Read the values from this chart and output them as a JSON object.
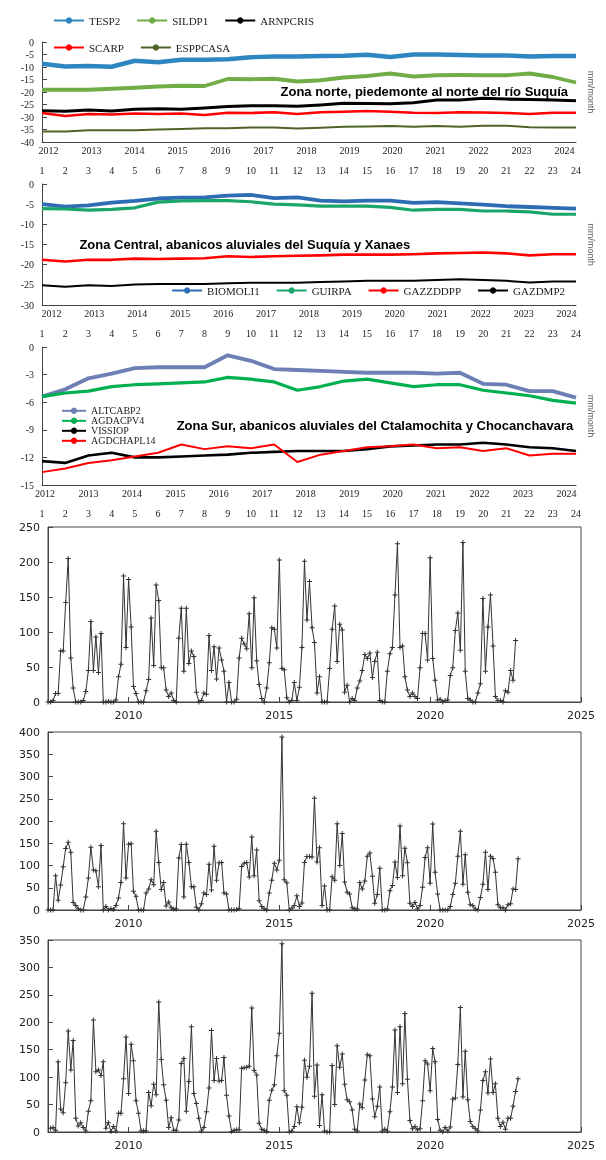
{
  "chart_data": [
    {
      "type": "line",
      "ylabel": "mm/month",
      "annotations": [
        "Zona norte, piedemonte al norte del río Suquía"
      ],
      "x": [
        1,
        2,
        3,
        4,
        5,
        6,
        7,
        8,
        9,
        10,
        11,
        12,
        13,
        14,
        15,
        16,
        17,
        18,
        19,
        20,
        21,
        22,
        23,
        24
      ],
      "xlim": [
        1,
        24
      ],
      "xticks": [
        1,
        2,
        3,
        4,
        5,
        6,
        7,
        8,
        9,
        10,
        11,
        12,
        13,
        14,
        15,
        16,
        17,
        18,
        19,
        20,
        21,
        22,
        23,
        24
      ],
      "x2lim": [
        2011.85,
        2024.27
      ],
      "x2ticks": [
        2012,
        2013,
        2014,
        2015,
        2016,
        2017,
        2018,
        2019,
        2020,
        2021,
        2022,
        2023,
        2024
      ],
      "ylim": [
        -40,
        0
      ],
      "yticks": [
        -40,
        -35,
        -30,
        -25,
        -20,
        -15,
        -10,
        -5,
        0
      ],
      "legend": "top left",
      "series": [
        {
          "name": "TESP2",
          "color": "#2e86c1",
          "values": [
            -8.7,
            -9.8,
            -9.6,
            -9.9,
            -7.5,
            -8.1,
            -7.1,
            -7.1,
            -6.9,
            -6.1,
            -5.8,
            -5.8,
            -5.6,
            -5.5,
            -5.1,
            -6.0,
            -5.0,
            -5.0,
            -5.2,
            -5.4,
            -5.4,
            -5.8,
            -5.6,
            -5.6
          ]
        },
        {
          "name": "SILDP1",
          "color": "#70ad47",
          "values": [
            -19.1,
            -19.1,
            -19.1,
            -18.7,
            -18.3,
            -17.8,
            -17.5,
            -17.6,
            -14.8,
            -14.9,
            -14.7,
            -15.8,
            -15.3,
            -14.2,
            -13.6,
            -12.6,
            -13.8,
            -13.3,
            -13.2,
            -13.3,
            -13.3,
            -12.6,
            -14.0,
            -16.2
          ]
        },
        {
          "name": "ARNPCRIS",
          "color": "#000000",
          "values": [
            -27.5,
            -27.7,
            -27.2,
            -27.6,
            -26.9,
            -26.7,
            -26.9,
            -26.4,
            -25.8,
            -25.5,
            -25.5,
            -25.7,
            -25.2,
            -24.5,
            -24.6,
            -24.7,
            -24.3,
            -23.2,
            -23.2,
            -22.5,
            -22.8,
            -23.0,
            -23.2,
            -23.5
          ]
        },
        {
          "name": "SCARP",
          "color": "#ff0000",
          "values": [
            -28.4,
            -29.6,
            -28.8,
            -29.0,
            -28.6,
            -28.8,
            -28.6,
            -29.2,
            -28.3,
            -28.4,
            -28.1,
            -28.8,
            -28.1,
            -27.9,
            -27.6,
            -27.9,
            -28.3,
            -28.4,
            -28.1,
            -28.2,
            -28.4,
            -28.8,
            -28.3,
            -28.3
          ]
        },
        {
          "name": "ESPPCASA",
          "color": "#4f6228",
          "values": [
            -35.8,
            -35.8,
            -35.3,
            -35.3,
            -35.3,
            -35.0,
            -34.8,
            -34.5,
            -34.5,
            -34.2,
            -34.2,
            -34.6,
            -34.3,
            -33.9,
            -33.8,
            -33.6,
            -33.9,
            -33.6,
            -33.9,
            -33.5,
            -33.5,
            -34.1,
            -34.2,
            -34.2
          ]
        }
      ]
    },
    {
      "type": "line",
      "ylabel": "mm/month",
      "annotations": [
        "Zona Central, abanicos aluviales del Suquía y Xanaes"
      ],
      "x": [
        1,
        2,
        3,
        4,
        5,
        6,
        7,
        8,
        9,
        10,
        11,
        12,
        13,
        14,
        15,
        16,
        17,
        18,
        19,
        20,
        21,
        22,
        23,
        24
      ],
      "xlim": [
        1,
        24
      ],
      "xticks": [
        1,
        2,
        3,
        4,
        5,
        6,
        7,
        8,
        9,
        10,
        11,
        12,
        13,
        14,
        15,
        16,
        17,
        18,
        19,
        20,
        21,
        22,
        23,
        24
      ],
      "x2lim": [
        2011.78,
        2024.22
      ],
      "x2ticks": [
        2012,
        2013,
        2014,
        2015,
        2016,
        2017,
        2018,
        2019,
        2020,
        2021,
        2022,
        2023,
        2024
      ],
      "ylim": [
        -30,
        0
      ],
      "yticks": [
        -30,
        -25,
        -20,
        -15,
        -10,
        -5,
        0
      ],
      "legend": "bottom right",
      "series": [
        {
          "name": "BIOMOLI1",
          "color": "#2e6db4",
          "values": [
            -5.0,
            -5.6,
            -5.3,
            -4.6,
            -4.2,
            -3.6,
            -3.4,
            -3.3,
            -2.9,
            -2.7,
            -3.5,
            -3.3,
            -4.1,
            -4.3,
            -4.1,
            -4.1,
            -4.7,
            -4.5,
            -4.8,
            -5.1,
            -5.5,
            -5.7,
            -5.9,
            -6.1
          ]
        },
        {
          "name": "GUIRPA",
          "color": "#1aa56b",
          "values": [
            -6.1,
            -6.2,
            -6.5,
            -6.3,
            -5.9,
            -4.5,
            -4.2,
            -4.1,
            -4.1,
            -4.4,
            -5.0,
            -5.2,
            -5.5,
            -5.5,
            -5.5,
            -5.8,
            -6.5,
            -6.3,
            -6.3,
            -6.7,
            -6.7,
            -6.9,
            -7.5,
            -7.5
          ]
        },
        {
          "name": "GAZZDDPP",
          "color": "#ff0000",
          "values": [
            -18.8,
            -19.2,
            -18.8,
            -18.8,
            -18.5,
            -18.6,
            -18.5,
            -18.4,
            -17.9,
            -18.1,
            -17.9,
            -17.8,
            -17.7,
            -17.5,
            -17.5,
            -17.5,
            -17.4,
            -17.2,
            -17.1,
            -17.0,
            -17.2,
            -17.7,
            -17.4,
            -17.4
          ]
        },
        {
          "name": "GAZDMP2",
          "color": "#000000",
          "values": [
            -25.1,
            -25.5,
            -25.1,
            -25.3,
            -24.9,
            -24.8,
            -24.8,
            -24.8,
            -24.6,
            -24.5,
            -24.5,
            -24.5,
            -24.3,
            -24.2,
            -24.0,
            -24.0,
            -24.0,
            -23.8,
            -23.6,
            -23.8,
            -24.0,
            -24.4,
            -24.2,
            -24.2
          ]
        }
      ]
    },
    {
      "type": "line",
      "ylabel": "mm/month",
      "annotations": [
        "Zona Sur, abanicos aluviales del Ctalamochita y Chocanchavara"
      ],
      "x": [
        1,
        2,
        3,
        4,
        5,
        6,
        7,
        8,
        9,
        10,
        11,
        12,
        13,
        14,
        15,
        16,
        17,
        18,
        19,
        20,
        21,
        22,
        23,
        24
      ],
      "xlim": [
        1,
        24
      ],
      "xticks": [
        1,
        2,
        3,
        4,
        5,
        6,
        7,
        8,
        9,
        10,
        11,
        12,
        13,
        14,
        15,
        16,
        17,
        18,
        19,
        20,
        21,
        22,
        23,
        24
      ],
      "x2lim": [
        2011.93,
        2024.22
      ],
      "x2ticks": [
        2012,
        2013,
        2014,
        2015,
        2016,
        2017,
        2018,
        2019,
        2020,
        2021,
        2022,
        2023,
        2024
      ],
      "ylim": [
        -15,
        0
      ],
      "yticks": [
        -15,
        -12,
        -9,
        -6,
        -3,
        0
      ],
      "legend": "left",
      "series": [
        {
          "name": "ALTCABP2",
          "color": "#6d7fb5",
          "values": [
            -5.4,
            -4.6,
            -3.4,
            -2.9,
            -2.3,
            -2.2,
            -2.2,
            -2.2,
            -0.9,
            -1.5,
            -2.4,
            -2.5,
            -2.6,
            -2.7,
            -2.8,
            -2.8,
            -2.8,
            -2.9,
            -2.8,
            -4.0,
            -4.1,
            -4.8,
            -4.8,
            -5.5
          ]
        },
        {
          "name": "AGDACPV4",
          "color": "#00b050",
          "values": [
            -5.4,
            -5.0,
            -4.8,
            -4.3,
            -4.1,
            -4.0,
            -3.9,
            -3.8,
            -3.3,
            -3.5,
            -3.8,
            -4.7,
            -4.3,
            -3.7,
            -3.5,
            -3.9,
            -4.3,
            -4.1,
            -4.1,
            -4.7,
            -5.0,
            -5.3,
            -5.8,
            -6.1
          ]
        },
        {
          "name": "VISSIOP",
          "color": "#000000",
          "values": [
            -12.4,
            -12.6,
            -11.8,
            -11.5,
            -12.0,
            -12.0,
            -11.9,
            -11.8,
            -11.7,
            -11.5,
            -11.4,
            -11.3,
            -11.3,
            -11.3,
            -11.1,
            -10.8,
            -10.7,
            -10.6,
            -10.6,
            -10.4,
            -10.6,
            -10.9,
            -11.0,
            -11.3
          ]
        },
        {
          "name": "AGDCHAPL14",
          "color": "#ff0000",
          "values": [
            -13.6,
            -13.2,
            -12.6,
            -12.3,
            -11.9,
            -11.5,
            -10.6,
            -11.1,
            -10.8,
            -11.0,
            -10.6,
            -12.5,
            -11.7,
            -11.3,
            -10.9,
            -10.8,
            -10.6,
            -11.0,
            -10.9,
            -11.3,
            -11.0,
            -11.8,
            -11.6,
            -11.6
          ]
        }
      ]
    },
    {
      "type": "line",
      "marker": "cross",
      "xlim": [
        "2007-05",
        "2025-01"
      ],
      "xticks": [
        "2010",
        "2015",
        "2020",
        "2025"
      ],
      "ylim": [
        0,
        250
      ],
      "yticks": [
        0,
        50,
        100,
        150,
        200,
        250
      ],
      "x": [
        "2007-05",
        "2007-06",
        "2007-07",
        "2007-08",
        "2007-09",
        "2007-10",
        "2007-11",
        "2007-12",
        "2008-01",
        "2008-02",
        "2008-03",
        "2008-04",
        "2008-05",
        "2008-06",
        "2008-07",
        "2008-08",
        "2008-09",
        "2008-10",
        "2008-11",
        "2008-12",
        "2009-01",
        "2009-02",
        "2009-03",
        "2009-04",
        "2009-05",
        "2009-06",
        "2009-07",
        "2009-08",
        "2009-09",
        "2009-10",
        "2009-11",
        "2009-12",
        "2010-01",
        "2010-02",
        "2010-03",
        "2010-04",
        "2010-05",
        "2010-06",
        "2010-07",
        "2010-08",
        "2010-09",
        "2010-10",
        "2010-11",
        "2010-12",
        "2011-01",
        "2011-02",
        "2011-03",
        "2011-04",
        "2011-05",
        "2011-06",
        "2011-07",
        "2011-08",
        "2011-09",
        "2011-10",
        "2011-11",
        "2011-12",
        "2012-01",
        "2012-02",
        "2012-03",
        "2012-04",
        "2012-05",
        "2012-06",
        "2012-07",
        "2012-08",
        "2012-09",
        "2012-10",
        "2012-11",
        "2012-12",
        "2013-01",
        "2013-02",
        "2013-03",
        "2013-04",
        "2013-05",
        "2013-06",
        "2013-07",
        "2013-08",
        "2013-09",
        "2013-10",
        "2013-11",
        "2013-12",
        "2014-01",
        "2014-02",
        "2014-03",
        "2014-04",
        "2014-05",
        "2014-06",
        "2014-07",
        "2014-08",
        "2014-09",
        "2014-10",
        "2014-11",
        "2014-12",
        "2015-01",
        "2015-02",
        "2015-03",
        "2015-04",
        "2015-05",
        "2015-06",
        "2015-07",
        "2015-08",
        "2015-09",
        "2015-10",
        "2015-11",
        "2015-12",
        "2016-01",
        "2016-02",
        "2016-03",
        "2016-04",
        "2016-05",
        "2016-06",
        "2016-07",
        "2016-08",
        "2016-09",
        "2016-10",
        "2016-11",
        "2016-12",
        "2017-01",
        "2017-02",
        "2017-03",
        "2017-04",
        "2017-05",
        "2017-06",
        "2017-07",
        "2017-08",
        "2017-09",
        "2017-10",
        "2017-11",
        "2017-12",
        "2018-01",
        "2018-02",
        "2018-03",
        "2018-04",
        "2018-05",
        "2018-06",
        "2018-07",
        "2018-08",
        "2018-09",
        "2018-10",
        "2018-11",
        "2018-12",
        "2019-01",
        "2019-02",
        "2019-03",
        "2019-04",
        "2019-05",
        "2019-06",
        "2019-07",
        "2019-08",
        "2019-09",
        "2019-10",
        "2019-11",
        "2019-12",
        "2020-01",
        "2020-02",
        "2020-03",
        "2020-04",
        "2020-05",
        "2020-06",
        "2020-07",
        "2020-08",
        "2020-09",
        "2020-10",
        "2020-11",
        "2020-12",
        "2021-01",
        "2021-02",
        "2021-03",
        "2021-04",
        "2021-05",
        "2021-06",
        "2021-07",
        "2021-08",
        "2021-09",
        "2021-10",
        "2021-11",
        "2021-12",
        "2022-01",
        "2022-02",
        "2022-03",
        "2022-04",
        "2022-05",
        "2022-06",
        "2022-07",
        "2022-08",
        "2022-09",
        "2022-10",
        "2022-11"
      ],
      "series": [
        {
          "color": "#333333",
          "values": [
            0,
            0,
            2,
            12,
            12,
            73,
            73,
            142,
            205,
            63,
            20,
            0,
            0,
            0,
            2,
            15,
            45,
            115,
            45,
            93,
            42,
            98,
            0,
            0,
            1,
            0,
            0,
            3,
            36,
            54,
            180,
            78,
            175,
            107,
            22,
            12,
            0,
            0,
            0,
            16,
            32,
            120,
            52,
            167,
            145,
            49,
            49,
            17,
            8,
            13,
            2,
            0,
            91,
            134,
            44,
            134,
            55,
            73,
            65,
            14,
            0,
            2,
            13,
            11,
            95,
            45,
            79,
            33,
            77,
            60,
            44,
            0,
            28,
            0,
            0,
            4,
            63,
            91,
            83,
            76,
            126,
            49,
            149,
            59,
            25,
            5,
            0,
            20,
            56,
            106,
            104,
            77,
            203,
            48,
            46,
            6,
            0,
            2,
            28,
            2,
            21,
            78,
            201,
            117,
            172,
            106,
            85,
            13,
            36,
            0,
            0,
            0,
            48,
            104,
            137,
            58,
            111,
            103,
            14,
            24,
            0,
            5,
            2,
            20,
            30,
            45,
            68,
            62,
            70,
            35,
            58,
            71,
            2,
            0,
            0,
            44,
            69,
            78,
            153,
            226,
            78,
            80,
            36,
            17,
            8,
            13,
            8,
            5,
            49,
            98,
            98,
            60,
            206,
            62,
            31,
            3,
            4,
            0,
            2,
            3,
            38,
            49,
            102,
            127,
            74,
            228,
            44,
            5,
            3,
            0,
            0,
            13,
            26,
            148,
            44,
            107,
            153,
            80,
            8,
            2,
            2,
            0,
            16,
            14,
            45,
            31,
            88
          ]
        }
      ]
    },
    {
      "type": "line",
      "marker": "cross",
      "xlim": [
        "2007-05",
        "2025-01"
      ],
      "xticks": [
        "2010",
        "2015",
        "2020",
        "2025"
      ],
      "ylim": [
        0,
        400
      ],
      "yticks": [
        0,
        50,
        100,
        150,
        200,
        250,
        300,
        350,
        400
      ],
      "x": [
        "2007-05",
        "2007-06",
        "2007-07",
        "2007-08",
        "2007-09",
        "2007-10",
        "2007-11",
        "2007-12",
        "2008-01",
        "2008-02",
        "2008-03",
        "2008-04",
        "2008-05",
        "2008-06",
        "2008-07",
        "2008-08",
        "2008-09",
        "2008-10",
        "2008-11",
        "2008-12",
        "2009-01",
        "2009-02",
        "2009-03",
        "2009-04",
        "2009-05",
        "2009-06",
        "2009-07",
        "2009-08",
        "2009-09",
        "2009-10",
        "2009-11",
        "2009-12",
        "2010-01",
        "2010-02",
        "2010-03",
        "2010-04",
        "2010-05",
        "2010-06",
        "2010-07",
        "2010-08",
        "2010-09",
        "2010-10",
        "2010-11",
        "2010-12",
        "2011-01",
        "2011-02",
        "2011-03",
        "2011-04",
        "2011-05",
        "2011-06",
        "2011-07",
        "2011-08",
        "2011-09",
        "2011-10",
        "2011-11",
        "2011-12",
        "2012-01",
        "2012-02",
        "2012-03",
        "2012-04",
        "2012-05",
        "2012-06",
        "2012-07",
        "2012-08",
        "2012-09",
        "2012-10",
        "2012-11",
        "2012-12",
        "2013-01",
        "2013-02",
        "2013-03",
        "2013-04",
        "2013-05",
        "2013-06",
        "2013-07",
        "2013-08",
        "2013-09",
        "2013-10",
        "2013-11",
        "2013-12",
        "2014-01",
        "2014-02",
        "2014-03",
        "2014-04",
        "2014-05",
        "2014-06",
        "2014-07",
        "2014-08",
        "2014-09",
        "2014-10",
        "2014-11",
        "2014-12",
        "2015-01",
        "2015-02",
        "2015-03",
        "2015-04",
        "2015-05",
        "2015-06",
        "2015-07",
        "2015-08",
        "2015-09",
        "2015-10",
        "2015-11",
        "2015-12",
        "2016-01",
        "2016-02",
        "2016-03",
        "2016-04",
        "2016-05",
        "2016-06",
        "2016-07",
        "2016-08",
        "2016-09",
        "2016-10",
        "2016-11",
        "2016-12",
        "2017-01",
        "2017-02",
        "2017-03",
        "2017-04",
        "2017-05",
        "2017-06",
        "2017-07",
        "2017-08",
        "2017-09",
        "2017-10",
        "2017-11",
        "2017-12",
        "2018-01",
        "2018-02",
        "2018-03",
        "2018-04",
        "2018-05",
        "2018-06",
        "2018-07",
        "2018-08",
        "2018-09",
        "2018-10",
        "2018-11",
        "2018-12",
        "2019-01",
        "2019-02",
        "2019-03",
        "2019-04",
        "2019-05",
        "2019-06",
        "2019-07",
        "2019-08",
        "2019-09",
        "2019-10",
        "2019-11",
        "2019-12",
        "2020-01",
        "2020-02",
        "2020-03",
        "2020-04",
        "2020-05",
        "2020-06",
        "2020-07",
        "2020-08",
        "2020-09",
        "2020-10",
        "2020-11",
        "2020-12",
        "2021-01",
        "2021-02",
        "2021-03",
        "2021-04",
        "2021-05",
        "2021-06",
        "2021-07",
        "2021-08",
        "2021-09",
        "2021-10",
        "2021-11",
        "2021-12",
        "2022-01",
        "2022-02",
        "2022-03",
        "2022-04",
        "2022-05",
        "2022-06",
        "2022-07",
        "2022-08",
        "2022-09",
        "2022-10",
        "2022-11",
        "2022-12"
      ],
      "series": [
        {
          "color": "#333333",
          "values": [
            0,
            0,
            0,
            77,
            22,
            56,
            97,
            138,
            152,
            130,
            17,
            10,
            3,
            0,
            0,
            29,
            72,
            141,
            90,
            88,
            52,
            145,
            0,
            8,
            0,
            3,
            1,
            10,
            27,
            62,
            194,
            72,
            148,
            149,
            42,
            31,
            0,
            0,
            0,
            38,
            47,
            68,
            57,
            177,
            107,
            46,
            62,
            9,
            18,
            5,
            2,
            2,
            117,
            147,
            29,
            148,
            107,
            52,
            52,
            6,
            0,
            14,
            38,
            35,
            103,
            45,
            143,
            67,
            106,
            107,
            38,
            36,
            0,
            0,
            0,
            1,
            3,
            98,
            105,
            107,
            74,
            164,
            77,
            135,
            21,
            8,
            3,
            0,
            38,
            67,
            105,
            90,
            112,
            389,
            68,
            61,
            0,
            4,
            10,
            32,
            8,
            16,
            107,
            120,
            120,
            119,
            251,
            108,
            140,
            10,
            54,
            0,
            0,
            75,
            67,
            194,
            100,
            172,
            63,
            40,
            36,
            5,
            2,
            2,
            62,
            47,
            65,
            121,
            128,
            76,
            15,
            35,
            94,
            0,
            0,
            2,
            43,
            55,
            108,
            73,
            189,
            77,
            139,
            106,
            15,
            8,
            17,
            2,
            10,
            51,
            118,
            140,
            60,
            193,
            85,
            36,
            0,
            0,
            0,
            0,
            8,
            35,
            60,
            121,
            177,
            58,
            124,
            40,
            12,
            10,
            2,
            0,
            28,
            58,
            130,
            46,
            121,
            116,
            85,
            12,
            5,
            5,
            0,
            12,
            14,
            47,
            46,
            115
          ]
        }
      ]
    },
    {
      "type": "line",
      "marker": "cross",
      "xlim": [
        "2007-05",
        "2025-01"
      ],
      "xticks": [
        "2010",
        "2015",
        "2020",
        "2025"
      ],
      "ylim": [
        0,
        350
      ],
      "yticks": [
        0,
        50,
        100,
        150,
        200,
        250,
        300,
        350
      ],
      "x": [
        "2007-06",
        "2007-07",
        "2007-08",
        "2007-09",
        "2007-10",
        "2007-11",
        "2007-12",
        "2008-01",
        "2008-02",
        "2008-03",
        "2008-04",
        "2008-05",
        "2008-06",
        "2008-07",
        "2008-08",
        "2008-09",
        "2008-10",
        "2008-11",
        "2008-12",
        "2009-01",
        "2009-02",
        "2009-03",
        "2009-04",
        "2009-05",
        "2009-06",
        "2009-07",
        "2009-08",
        "2009-09",
        "2009-10",
        "2009-11",
        "2009-12",
        "2010-01",
        "2010-02",
        "2010-03",
        "2010-04",
        "2010-05",
        "2010-06",
        "2010-07",
        "2010-08",
        "2010-09",
        "2010-10",
        "2010-11",
        "2010-12",
        "2011-01",
        "2011-02",
        "2011-03",
        "2011-04",
        "2011-05",
        "2011-06",
        "2011-07",
        "2011-08",
        "2011-09",
        "2011-10",
        "2011-11",
        "2011-12",
        "2012-01",
        "2012-02",
        "2012-03",
        "2012-04",
        "2012-05",
        "2012-06",
        "2012-07",
        "2012-08",
        "2012-09",
        "2012-10",
        "2012-11",
        "2012-12",
        "2013-01",
        "2013-02",
        "2013-03",
        "2013-04",
        "2013-05",
        "2013-06",
        "2013-07",
        "2013-08",
        "2013-09",
        "2013-10",
        "2013-11",
        "2013-12",
        "2014-01",
        "2014-02",
        "2014-03",
        "2014-04",
        "2014-05",
        "2014-06",
        "2014-07",
        "2014-08",
        "2014-09",
        "2014-10",
        "2014-11",
        "2014-12",
        "2015-01",
        "2015-02",
        "2015-03",
        "2015-04",
        "2015-05",
        "2015-06",
        "2015-07",
        "2015-08",
        "2015-09",
        "2015-10",
        "2015-11",
        "2015-12",
        "2016-01",
        "2016-02",
        "2016-03",
        "2016-04",
        "2016-05",
        "2016-06",
        "2016-07",
        "2016-08",
        "2016-09",
        "2016-10",
        "2016-11",
        "2016-12",
        "2017-01",
        "2017-02",
        "2017-03",
        "2017-04",
        "2017-05",
        "2017-06",
        "2017-07",
        "2017-08",
        "2017-09",
        "2017-10",
        "2017-11",
        "2017-12",
        "2018-01",
        "2018-02",
        "2018-03",
        "2018-04",
        "2018-05",
        "2018-06",
        "2018-07",
        "2018-08",
        "2018-09",
        "2018-10",
        "2018-11",
        "2018-12",
        "2019-01",
        "2019-02",
        "2019-03",
        "2019-04",
        "2019-05",
        "2019-06",
        "2019-07",
        "2019-08",
        "2019-09",
        "2019-10",
        "2019-11",
        "2019-12",
        "2020-01",
        "2020-02",
        "2020-03",
        "2020-04",
        "2020-05",
        "2020-06",
        "2020-07",
        "2020-08",
        "2020-09",
        "2020-10",
        "2020-11",
        "2020-12",
        "2021-01",
        "2021-02",
        "2021-03",
        "2021-04",
        "2021-05",
        "2021-06",
        "2021-07",
        "2021-08",
        "2021-09",
        "2021-10",
        "2021-11",
        "2021-12",
        "2022-01",
        "2022-02",
        "2022-03",
        "2022-04",
        "2022-05",
        "2022-06",
        "2022-07",
        "2022-08",
        "2022-09",
        "2022-10",
        "2022-11",
        "2022-12"
      ],
      "series": [
        {
          "color": "#333333",
          "values": [
            7,
            8,
            3,
            128,
            42,
            35,
            90,
            184,
            113,
            167,
            25,
            11,
            17,
            8,
            2,
            38,
            57,
            204,
            110,
            113,
            103,
            128,
            7,
            17,
            1,
            10,
            2,
            34,
            34,
            97,
            173,
            70,
            160,
            130,
            57,
            34,
            2,
            2,
            2,
            72,
            48,
            87,
            68,
            237,
            132,
            86,
            58,
            8,
            26,
            3,
            3,
            22,
            125,
            134,
            38,
            92,
            192,
            70,
            52,
            25,
            2,
            8,
            37,
            80,
            185,
            94,
            134,
            93,
            94,
            136,
            67,
            29,
            1,
            3,
            4,
            4,
            116,
            117,
            118,
            120,
            226,
            112,
            104,
            16,
            5,
            3,
            1,
            58,
            76,
            86,
            139,
            180,
            343,
            75,
            67,
            0,
            2,
            10,
            46,
            17,
            45,
            131,
            100,
            120,
            253,
            65,
            122,
            12,
            68,
            2,
            0,
            0,
            121,
            50,
            157,
            118,
            142,
            87,
            59,
            55,
            40,
            5,
            2,
            51,
            44,
            95,
            141,
            139,
            60,
            28,
            47,
            82,
            2,
            5,
            2,
            37,
            82,
            186,
            72,
            192,
            88,
            216,
            96,
            21,
            6,
            10,
            4,
            6,
            57,
            130,
            124,
            75,
            152,
            128,
            23,
            3,
            0,
            8,
            2,
            9,
            60,
            62,
            123,
            227,
            64,
            147,
            59,
            19,
            10,
            6,
            2,
            40,
            94,
            110,
            71,
            133,
            72,
            88,
            25,
            10,
            18,
            5,
            25,
            25,
            47,
            74,
            97
          ]
        }
      ]
    }
  ]
}
